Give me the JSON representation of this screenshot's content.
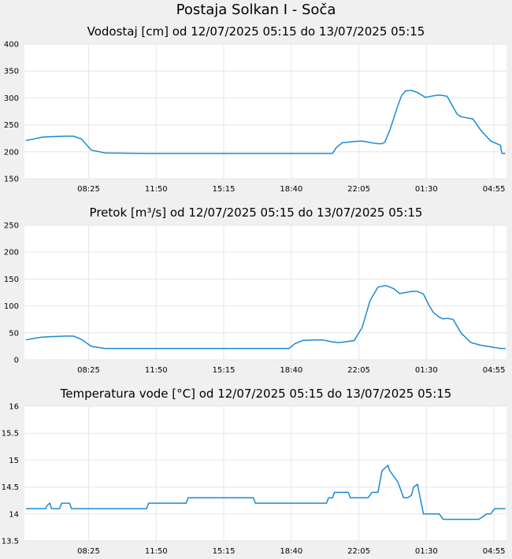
{
  "page_title": "Postaja Solkan I - Soča",
  "chart_data": [
    {
      "type": "line",
      "title": "Vodostaj [cm] od 12/07/2025 05:15 do 13/07/2025 05:15",
      "x_ticks": [
        "08:25",
        "11:50",
        "15:15",
        "18:40",
        "22:05",
        "01:30",
        "04:55"
      ],
      "y_ticks": [
        "400",
        "350",
        "300",
        "250",
        "200",
        "150"
      ],
      "ylim": [
        150,
        400
      ],
      "x_range_hours": [
        0,
        24
      ],
      "grid": true,
      "line_color": "#1a8ad4",
      "series": [
        {
          "x": [
            0,
            0.3,
            0.8,
            1.2,
            2.0,
            2.4,
            2.8,
            3.3,
            4.0,
            6.0,
            9.0,
            12.0,
            13.8,
            15.5,
            15.7,
            16.0,
            16.6,
            17.0,
            17.6,
            17.8,
            18.0,
            18.15,
            18.4,
            18.8,
            19.0,
            19.2,
            19.5,
            19.8,
            20.2,
            20.6,
            20.8,
            21.0,
            21.3,
            21.6,
            21.8,
            22.0,
            22.3,
            22.6,
            23.0,
            23.5,
            24.0
          ],
          "y": [
            221,
            223,
            227,
            228,
            229,
            229,
            224,
            203,
            198,
            197,
            197,
            197,
            197,
            197,
            208,
            217,
            219,
            220,
            216,
            215,
            215,
            218,
            240,
            285,
            305,
            313,
            314,
            310,
            301,
            304,
            305,
            305,
            303,
            283,
            270,
            265,
            263,
            261,
            240,
            220,
            212
          ]
        }
      ],
      "series_tail": {
        "x": [
          24.0,
          24.5,
          25.0,
          25.5,
          26.0,
          27.0,
          28.0,
          29.0
        ],
        "y": [
          212,
          205,
          200,
          197,
          197,
          197,
          197,
          197
        ]
      }
    },
    {
      "type": "line",
      "title": "Pretok [m³/s] od 12/07/2025 05:15 do 13/07/2025 05:15",
      "x_ticks": [
        "08:25",
        "11:50",
        "15:15",
        "18:40",
        "22:05",
        "01:30",
        "04:55"
      ],
      "y_ticks": [
        "250",
        "200",
        "150",
        "100",
        "50",
        "0"
      ],
      "ylim": [
        0,
        250
      ],
      "x_range_hours": [
        0,
        24
      ],
      "grid": true,
      "line_color": "#1a8ad4",
      "series": [
        {
          "x": [
            0,
            0.3,
            0.8,
            1.2,
            2.0,
            2.4,
            2.8,
            3.3,
            4.0,
            6.0,
            9.0,
            12.0,
            13.0,
            13.3,
            13.6,
            14.0,
            14.6,
            15.0,
            15.5,
            15.8,
            16.1,
            16.6,
            17.0,
            17.4,
            17.8,
            18.2,
            18.6,
            18.9,
            19.2,
            19.5,
            19.8,
            20.1,
            20.4,
            20.6,
            20.9,
            21.1,
            21.3,
            21.6,
            22.0,
            22.5,
            23.0,
            24.0
          ],
          "y": [
            37,
            39,
            42,
            43,
            44,
            44,
            38,
            25,
            21,
            21,
            21,
            21,
            21,
            21,
            30,
            36,
            37,
            37,
            33,
            32,
            33,
            36,
            60,
            110,
            135,
            138,
            132,
            123,
            125,
            127,
            127,
            122,
            100,
            88,
            79,
            76,
            77,
            75,
            50,
            32,
            27,
            21
          ]
        }
      ]
    },
    {
      "type": "line",
      "title": "Temperatura vode [°C] od 12/07/2025 05:15 do 13/07/2025 05:15",
      "x_ticks": [
        "08:25",
        "11:50",
        "15:15",
        "18:40",
        "22:05",
        "01:30",
        "04:55"
      ],
      "y_ticks": [
        "16",
        "15.5",
        "15",
        "14.5",
        "14",
        "13.5"
      ],
      "ylim": [
        13.5,
        16
      ],
      "x_range_hours": [
        0,
        24
      ],
      "grid": true,
      "line_color": "#1a8ad4",
      "series": [
        {
          "x": [
            0,
            1.0,
            1.05,
            1.2,
            1.3,
            1.7,
            1.8,
            2.2,
            2.3,
            3.6,
            3.7,
            5.0,
            5.1,
            6.1,
            6.2,
            8.1,
            8.2,
            11.5,
            11.6,
            12.5,
            12.6,
            13.2,
            13.3,
            14.1,
            14.2,
            15.2,
            15.3,
            15.5,
            15.6,
            15.8,
            16.0,
            16.3,
            16.4,
            17.3,
            17.5,
            17.8,
            18.0,
            18.3,
            18.4,
            18.6,
            18.8,
            19.0,
            19.1,
            19.3,
            19.5,
            19.6,
            19.8,
            20.1,
            20.3,
            20.6,
            20.9,
            21.1,
            21.4,
            21.5,
            22.0,
            22.4,
            22.9,
            23.3,
            23.5,
            23.7,
            24.0
          ],
          "y": [
            14.1,
            14.1,
            14.15,
            14.2,
            14.1,
            14.1,
            14.2,
            14.2,
            14.1,
            14.1,
            14.1,
            14.1,
            14.1,
            14.1,
            14.2,
            14.2,
            14.3,
            14.3,
            14.2,
            14.2,
            14.2,
            14.2,
            14.2,
            14.2,
            14.2,
            14.2,
            14.3,
            14.3,
            14.4,
            14.4,
            14.4,
            14.4,
            14.3,
            14.3,
            14.4,
            14.4,
            14.8,
            14.9,
            14.8,
            14.7,
            14.6,
            14.4,
            14.3,
            14.3,
            14.35,
            14.5,
            14.55,
            14.0,
            14.0,
            14.0,
            14.0,
            13.9,
            13.9,
            13.9,
            13.9,
            13.9,
            13.9,
            14.0,
            14.0,
            14.1,
            14.1
          ]
        }
      ]
    }
  ]
}
